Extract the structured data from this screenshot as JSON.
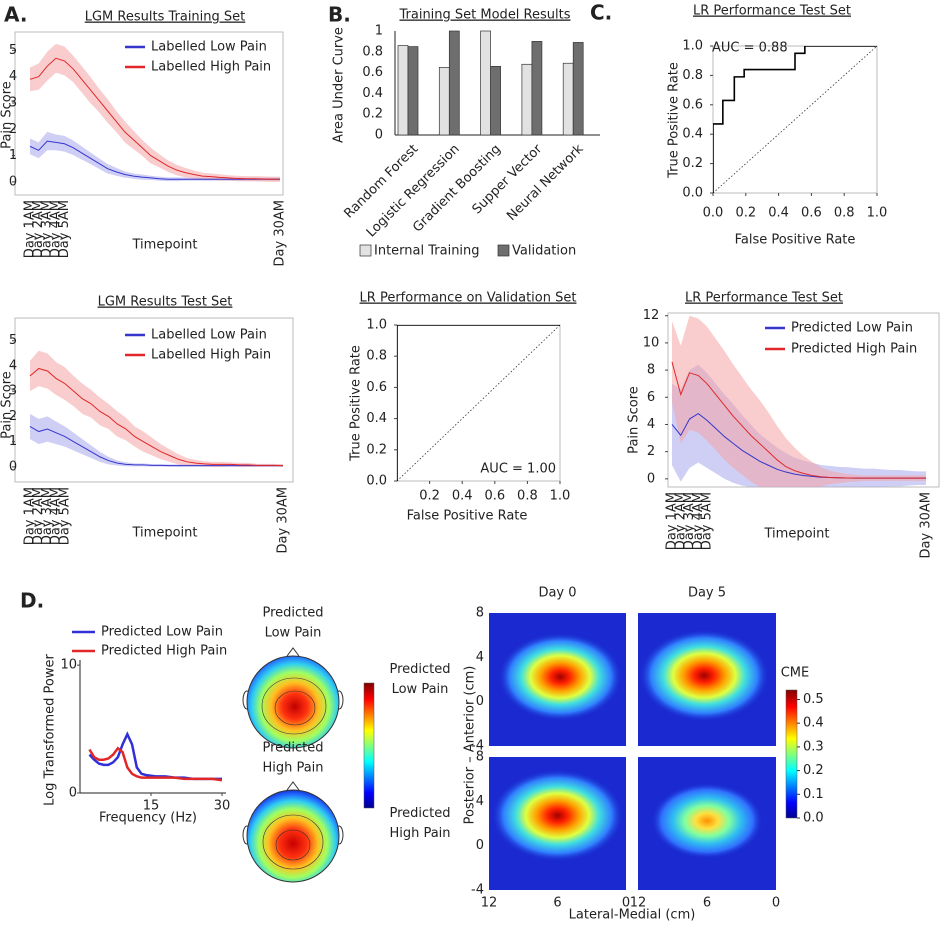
{
  "panel_labels": [
    "A.",
    "B.",
    "C.",
    "D."
  ],
  "topomaps": {
    "labels": [
      [
        "Predicted",
        "Low Pain"
      ],
      [
        "Predicted",
        "High Pain"
      ]
    ]
  },
  "chart_data": [
    {
      "type": "line",
      "title": "LGM Results Training Set",
      "xlabel": "Timepoint",
      "ylabel": "Pain Score",
      "categories": [
        "Day 1AM",
        "Day 2AM",
        "Day 3AM",
        "Day 4AM",
        "Day 5AM",
        null,
        null,
        null,
        null,
        null,
        null,
        null,
        null,
        null,
        null,
        null,
        null,
        null,
        null,
        null,
        null,
        null,
        null,
        null,
        null,
        null,
        null,
        null,
        null,
        "Day 30AM"
      ],
      "ylim": [
        -0.5,
        5.7
      ],
      "yticks": [
        0,
        1,
        2,
        3,
        4,
        5
      ],
      "legend": "upper right",
      "series": [
        {
          "name": "Labelled Low Pain",
          "color": "#3636cc",
          "band_color": "#a8a8ee",
          "values": [
            1.35,
            1.2,
            1.55,
            1.5,
            1.45,
            1.3,
            1.1,
            0.9,
            0.7,
            0.5,
            0.38,
            0.28,
            0.22,
            0.18,
            0.15,
            0.12,
            0.1,
            0.1,
            0.1,
            0.1,
            0.1,
            0.1,
            0.1,
            0.1,
            0.1,
            0.1,
            0.1,
            0.1,
            0.1,
            0.1
          ],
          "errors": [
            0.3,
            0.3,
            0.35,
            0.3,
            0.3,
            0.28,
            0.25,
            0.22,
            0.2,
            0.18,
            0.15,
            0.12,
            0.1,
            0.1,
            0.08,
            0.08,
            0.07,
            0.07,
            0.06,
            0.06,
            0.06,
            0.06,
            0.06,
            0.06,
            0.06,
            0.06,
            0.06,
            0.06,
            0.06,
            0.06
          ]
        },
        {
          "name": "Labelled High Pain",
          "color": "#e02828",
          "band_color": "#f4a4a4",
          "values": [
            3.9,
            4.0,
            4.4,
            4.7,
            4.6,
            4.3,
            3.9,
            3.5,
            3.1,
            2.7,
            2.3,
            1.9,
            1.6,
            1.3,
            1.0,
            0.8,
            0.6,
            0.45,
            0.35,
            0.28,
            0.22,
            0.2,
            0.17,
            0.15,
            0.13,
            0.12,
            0.12,
            0.11,
            0.1,
            0.1
          ],
          "errors": [
            0.45,
            0.5,
            0.55,
            0.55,
            0.55,
            0.5,
            0.5,
            0.5,
            0.45,
            0.45,
            0.4,
            0.4,
            0.35,
            0.3,
            0.3,
            0.25,
            0.22,
            0.2,
            0.18,
            0.15,
            0.13,
            0.12,
            0.12,
            0.1,
            0.1,
            0.1,
            0.1,
            0.1,
            0.1,
            0.1
          ]
        }
      ]
    },
    {
      "type": "bar",
      "title": "Training Set Model Results",
      "ylabel": "Area Under Curve",
      "categories": [
        "Random Forest",
        "Logistic Regression",
        "Gradient Boosting",
        "Supper Vector",
        "Neural Network"
      ],
      "ylim": [
        0,
        1
      ],
      "yticks": [
        0,
        0.2,
        0.4,
        0.6,
        0.8,
        1
      ],
      "legend": "bottom",
      "series": [
        {
          "name": "Internal Training",
          "color": "#e2e2e2",
          "values": [
            0.86,
            0.65,
            1.0,
            0.68,
            0.69
          ]
        },
        {
          "name": "Validation",
          "color": "#6e6e6e",
          "values": [
            0.85,
            1.0,
            0.66,
            0.9,
            0.89
          ]
        }
      ]
    },
    {
      "type": "line",
      "title": "LR Performance Test Set",
      "xlabel": "False Positive Rate",
      "ylabel": "True Positive Rate",
      "annotation": "AUC = 0.88",
      "x": [
        0,
        0,
        0.06,
        0.06,
        0.13,
        0.13,
        0.19,
        0.19,
        0.5,
        0.5,
        0.56,
        0.56,
        1
      ],
      "series": [
        {
          "color": "#000000",
          "values": [
            0,
            0.47,
            0.47,
            0.63,
            0.63,
            0.79,
            0.79,
            0.84,
            0.84,
            0.95,
            0.95,
            1,
            1
          ]
        }
      ],
      "xlim": [
        0,
        1
      ],
      "ylim": [
        0,
        1
      ],
      "xticks": [
        {
          "value": 0,
          "label": "0.0"
        },
        0.2,
        0.4,
        0.6,
        0.8,
        {
          "value": 1,
          "label": "1.0"
        }
      ],
      "yticks": [
        {
          "value": 0,
          "label": "0.0"
        },
        0.2,
        0.4,
        0.6,
        0.8,
        {
          "value": 1,
          "label": "1.0"
        }
      ]
    },
    {
      "type": "line",
      "title": "LGM Results Test Set",
      "xlabel": "Timepoint",
      "ylabel": "Pain Score",
      "categories": [
        "Day 1AM",
        "Day 2AM",
        "Day 3AM",
        "Day 4AM",
        "Day 5AM",
        null,
        null,
        null,
        null,
        null,
        null,
        null,
        null,
        null,
        null,
        null,
        null,
        null,
        null,
        null,
        null,
        null,
        null,
        null,
        null,
        null,
        null,
        null,
        null,
        "Day 30AM"
      ],
      "ylim": [
        -0.6,
        5.9
      ],
      "yticks": [
        0,
        1,
        2,
        3,
        4,
        5
      ],
      "legend": "upper right",
      "series": [
        {
          "name": "Labelled Low Pain",
          "color": "#3636cc",
          "band_color": "#a8a8ee",
          "values": [
            1.6,
            1.4,
            1.5,
            1.35,
            1.2,
            1.0,
            0.8,
            0.6,
            0.4,
            0.25,
            0.15,
            0.1,
            0.08,
            0.08,
            0.06,
            0.06,
            0.05,
            0.05,
            0.05,
            0.05,
            0.05,
            0.05,
            0.05,
            0.05,
            0.05,
            0.05,
            0.05,
            0.05,
            0.05,
            0.05
          ],
          "errors": [
            0.5,
            0.5,
            0.5,
            0.45,
            0.4,
            0.35,
            0.3,
            0.25,
            0.2,
            0.15,
            0.1,
            0.08,
            0.06,
            0.06,
            0.05,
            0.05,
            0.05,
            0.05,
            0.05,
            0.05,
            0.05,
            0.05,
            0.05,
            0.05,
            0.05,
            0.05,
            0.05,
            0.05,
            0.05,
            0.05
          ]
        },
        {
          "name": "Labelled High Pain",
          "color": "#e02828",
          "band_color": "#f4a4a4",
          "values": [
            3.6,
            3.9,
            3.8,
            3.5,
            3.3,
            3.0,
            2.7,
            2.5,
            2.2,
            2.0,
            1.7,
            1.5,
            1.2,
            1.0,
            0.8,
            0.6,
            0.45,
            0.3,
            0.2,
            0.15,
            0.12,
            0.1,
            0.1,
            0.1,
            0.08,
            0.08,
            0.06,
            0.06,
            0.06,
            0.05
          ],
          "errors": [
            0.6,
            0.7,
            0.7,
            0.65,
            0.65,
            0.6,
            0.6,
            0.55,
            0.55,
            0.5,
            0.5,
            0.45,
            0.4,
            0.4,
            0.35,
            0.3,
            0.25,
            0.2,
            0.15,
            0.12,
            0.1,
            0.1,
            0.1,
            0.08,
            0.08,
            0.08,
            0.06,
            0.06,
            0.06,
            0.05
          ]
        }
      ]
    },
    {
      "type": "line",
      "title": "LR Performance on Validation Set",
      "xlabel": "False Positive Rate",
      "ylabel": "True Positive Rate",
      "annotation": "AUC = 1.00",
      "x": [
        0,
        0,
        1
      ],
      "series": [
        {
          "color": "#000000",
          "values": [
            0,
            1,
            1
          ]
        }
      ],
      "xlim": [
        0,
        1
      ],
      "ylim": [
        0,
        1
      ],
      "xticks": [
        0.2,
        0.4,
        0.6,
        0.8,
        {
          "value": 1,
          "label": "1.0"
        }
      ],
      "yticks": [
        {
          "value": 0,
          "label": "0.0"
        },
        0.2,
        0.4,
        0.6,
        0.8,
        {
          "value": 1,
          "label": "1.0"
        }
      ]
    },
    {
      "type": "line",
      "title": "LR Performance Test Set",
      "xlabel": "Timepoint",
      "ylabel": "Pain Score",
      "categories": [
        "Day 1AM",
        "Day 2AM",
        "Day 3AM",
        "Day 4AM",
        "Day 5AM",
        null,
        null,
        null,
        null,
        null,
        null,
        null,
        null,
        null,
        null,
        null,
        null,
        null,
        null,
        null,
        null,
        null,
        null,
        null,
        null,
        null,
        null,
        null,
        null,
        "Day 30AM"
      ],
      "ylim": [
        -0.6,
        12.2
      ],
      "yticks": [
        0,
        2,
        4,
        6,
        8,
        10,
        12
      ],
      "legend": "upper right",
      "series": [
        {
          "name": "Predicted Low Pain",
          "color": "#3636cc",
          "band_color": "#a8a8ee",
          "values": [
            4.0,
            3.2,
            4.4,
            4.8,
            4.3,
            3.7,
            3.1,
            2.6,
            2.1,
            1.7,
            1.3,
            1.0,
            0.7,
            0.5,
            0.35,
            0.25,
            0.18,
            0.12,
            0.1,
            0.08,
            0.06,
            0.05,
            0.05,
            0.05,
            0.05,
            0.05,
            0.05,
            0.05,
            0.05,
            0.05
          ],
          "errors": [
            3.0,
            3.4,
            3.6,
            3.6,
            3.5,
            3.3,
            3.1,
            2.9,
            2.6,
            2.3,
            2.0,
            1.8,
            1.6,
            1.4,
            1.2,
            1.1,
            1.0,
            0.9,
            0.85,
            0.8,
            0.8,
            0.75,
            0.7,
            0.7,
            0.65,
            0.6,
            0.6,
            0.55,
            0.5,
            0.5
          ]
        },
        {
          "name": "Predicted High Pain",
          "color": "#e02828",
          "band_color": "#f4a4a4",
          "values": [
            8.6,
            6.2,
            7.8,
            7.6,
            7.0,
            6.2,
            5.4,
            4.6,
            3.9,
            3.2,
            2.6,
            2.0,
            1.4,
            0.9,
            0.6,
            0.4,
            0.25,
            0.15,
            0.1,
            0.08,
            0.06,
            0.05,
            0.05,
            0.05,
            0.05,
            0.05,
            0.05,
            0.05,
            0.05,
            0.05
          ],
          "errors": [
            3.0,
            3.6,
            4.2,
            4.2,
            4.2,
            4.1,
            4.0,
            3.8,
            3.6,
            3.4,
            3.2,
            2.9,
            2.5,
            2.1,
            1.7,
            1.3,
            1.0,
            0.7,
            0.5,
            0.4,
            0.3,
            0.25,
            0.2,
            0.2,
            0.2,
            0.2,
            0.2,
            0.2,
            0.2,
            0.2
          ]
        }
      ]
    },
    {
      "type": "line",
      "xlabel": "Frequency (Hz)",
      "ylabel": "Log Transformed Power",
      "legend": "upper left",
      "x": [
        2,
        3,
        4,
        5,
        6,
        7,
        8,
        9,
        10,
        11,
        12,
        13,
        14,
        16,
        18,
        20,
        22,
        24,
        26,
        28,
        30
      ],
      "xlim": [
        0,
        30
      ],
      "ylim": [
        0,
        10.4
      ],
      "xticks": [
        15,
        30
      ],
      "yticks": [
        0,
        10
      ],
      "series": [
        {
          "name": "Predicted Low Pain",
          "color": "#3030d8",
          "values": [
            3.0,
            2.6,
            2.3,
            2.2,
            2.2,
            2.4,
            2.8,
            3.8,
            4.6,
            3.8,
            2.0,
            1.5,
            1.4,
            1.3,
            1.3,
            1.2,
            1.2,
            1.1,
            1.1,
            1.1,
            1.1
          ]
        },
        {
          "name": "Predicted High Pain",
          "color": "#e02828",
          "values": [
            3.4,
            2.8,
            2.6,
            2.6,
            2.7,
            3.0,
            3.5,
            3.2,
            2.0,
            1.5,
            1.3,
            1.2,
            1.2,
            1.2,
            1.2,
            1.2,
            1.1,
            1.1,
            1.1,
            1.1,
            1.0
          ]
        }
      ]
    },
    {
      "type": "heatmap",
      "xlabel": "Lateral-Medial (cm)",
      "ylabel": "Posterior – Anterior (cm)",
      "col_titles": [
        "Day 0",
        "Day 5"
      ],
      "row_titles": [
        [
          "Predicted",
          "Low Pain"
        ],
        [
          "Predicted",
          "High Pain"
        ]
      ],
      "xlim": [
        12,
        0
      ],
      "ylim": [
        -4,
        8
      ],
      "xticks": [
        12,
        6,
        0
      ],
      "yticks": [
        -4,
        0,
        4,
        8
      ],
      "clabel": "CME",
      "clim": [
        0,
        0.54
      ],
      "cticks": [
        {
          "value": 0,
          "label": "0.0"
        },
        0.1,
        0.2,
        0.3,
        0.4,
        0.5
      ]
    }
  ]
}
